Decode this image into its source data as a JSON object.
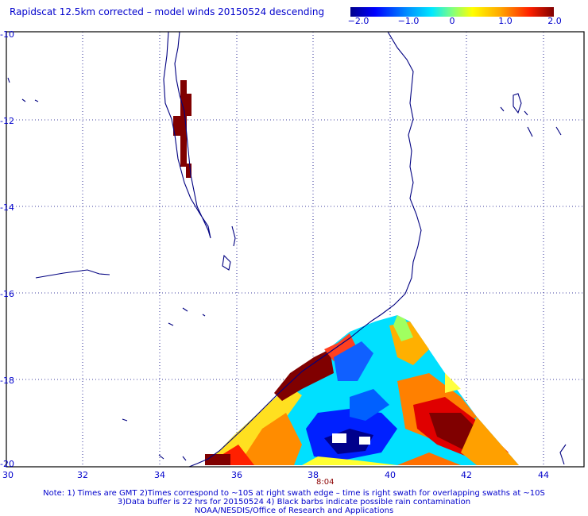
{
  "title": "Rapidscat 12.5km corrected – model winds 20150524 descending",
  "colorbar": {
    "labels": [
      "−2.0",
      "−1.0",
      "0",
      "1.0",
      "2.0"
    ],
    "values": [
      -2.0,
      -1.0,
      0,
      1.0,
      2.0
    ],
    "range": [
      -2.0,
      2.0
    ]
  },
  "axes": {
    "lat_labels": [
      "-10",
      "-12",
      "-14",
      "-16",
      "-18",
      "-20"
    ],
    "lat_values": [
      -10,
      -12,
      -14,
      -16,
      -18,
      -20
    ],
    "lon_labels": [
      "30",
      "32",
      "34",
      "36",
      "38",
      "40",
      "42",
      "44"
    ],
    "lon_values": [
      30,
      32,
      34,
      36,
      38,
      40,
      42,
      44
    ],
    "lon_range": [
      30,
      45
    ],
    "lat_range": [
      -10,
      -20
    ],
    "grid": "dotted"
  },
  "swath_time": "8:04",
  "notes": {
    "line1": "Note: 1) Times are GMT 2)Times correspond to ~10S at right swath edge – time is right swath for overlapping swaths at ~10S",
    "line2": "3)Data buffer is 22 hrs for 20150524 4) Black barbs indicate possible rain contamination",
    "line3": "NOAA/NESDIS/Office of Research and Applications"
  },
  "colors": {
    "coast": "#000080",
    "text": "#0000cc",
    "frame": "#000000"
  }
}
